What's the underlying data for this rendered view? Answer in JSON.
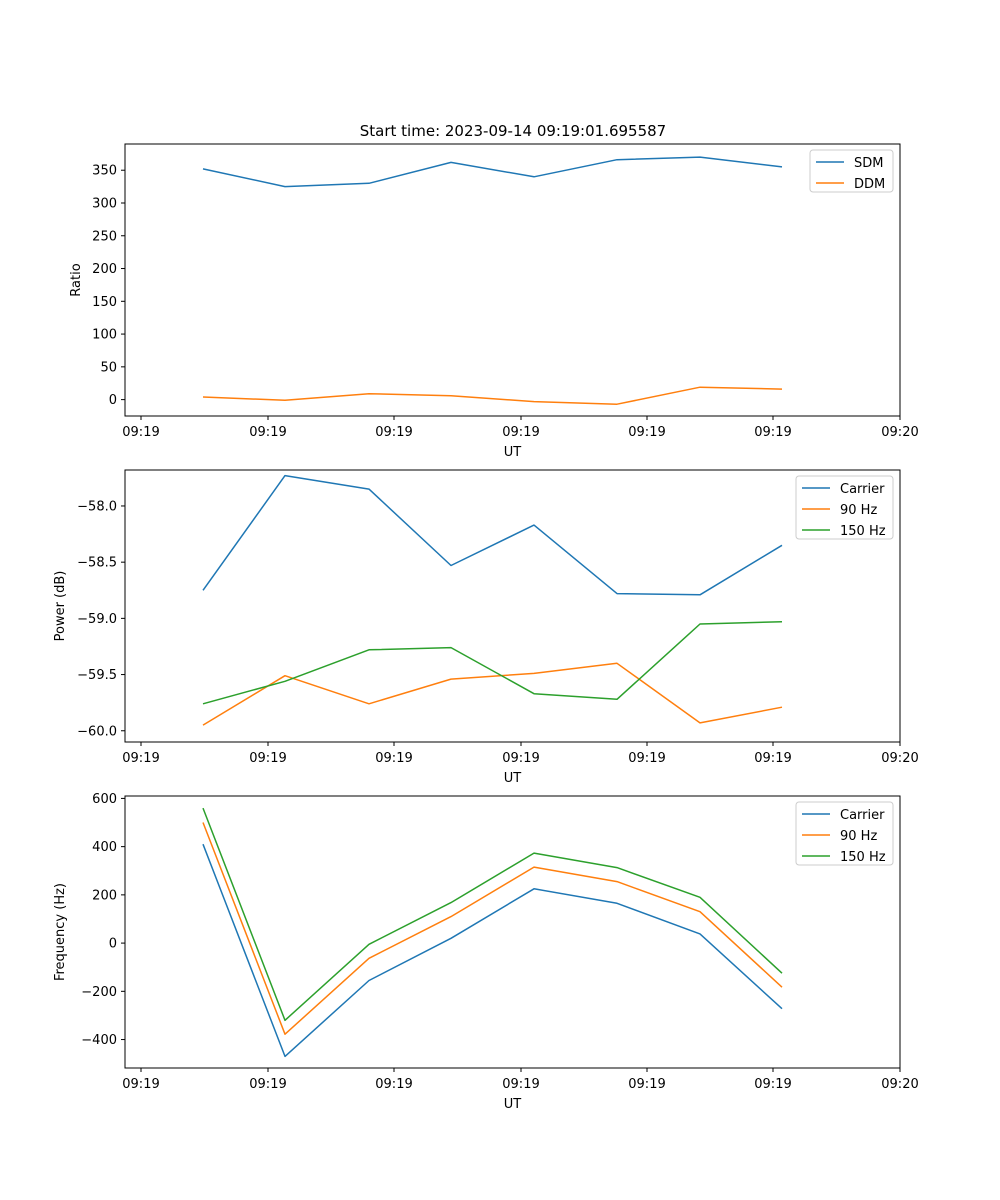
{
  "figure_title": "Start time: 2023-09-14 09:19:01.695587",
  "colors": {
    "c0": "#1f77b4",
    "c1": "#ff7f0e",
    "c2": "#2ca02c"
  },
  "chart_data": [
    {
      "type": "line",
      "xlabel": "UT",
      "ylabel": "Ratio",
      "x_tick_labels": [
        "09:19",
        "09:19",
        "09:19",
        "09:19",
        "09:19",
        "09:19",
        "09:20"
      ],
      "y_ticks": [
        0,
        50,
        100,
        150,
        200,
        250,
        300,
        350
      ],
      "y_tick_labels": [
        "0",
        "50",
        "100",
        "150",
        "200",
        "250",
        "300",
        "350"
      ],
      "ylim": [
        -25,
        390
      ],
      "legend_position": "top-right",
      "series": [
        {
          "name": "SDM",
          "values": [
            352,
            325,
            330,
            362,
            340,
            366,
            370,
            355
          ]
        },
        {
          "name": "DDM",
          "values": [
            4,
            -1,
            9,
            6,
            -3,
            -7,
            19,
            16
          ]
        }
      ]
    },
    {
      "type": "line",
      "xlabel": "UT",
      "ylabel": "Power (dB)",
      "x_tick_labels": [
        "09:19",
        "09:19",
        "09:19",
        "09:19",
        "09:19",
        "09:19",
        "09:20"
      ],
      "y_ticks": [
        -60.0,
        -59.5,
        -59.0,
        -58.5,
        -58.0
      ],
      "y_tick_labels": [
        "−60.0",
        "−59.5",
        "−59.0",
        "−58.5",
        "−58.0"
      ],
      "ylim": [
        -60.1,
        -57.68
      ],
      "legend_position": "top-right",
      "series": [
        {
          "name": "Carrier",
          "values": [
            -58.75,
            -57.73,
            -57.85,
            -58.53,
            -58.17,
            -58.78,
            -58.79,
            -58.35
          ]
        },
        {
          "name": "90 Hz",
          "values": [
            -59.95,
            -59.51,
            -59.76,
            -59.54,
            -59.49,
            -59.4,
            -59.93,
            -59.79
          ]
        },
        {
          "name": "150 Hz",
          "values": [
            -59.76,
            -59.56,
            -59.28,
            -59.26,
            -59.67,
            -59.72,
            -59.05,
            -59.03
          ]
        }
      ]
    },
    {
      "type": "line",
      "xlabel": "UT",
      "ylabel": "Frequency (Hz)",
      "x_tick_labels": [
        "09:19",
        "09:19",
        "09:19",
        "09:19",
        "09:19",
        "09:19",
        "09:20"
      ],
      "y_ticks": [
        -400,
        -200,
        0,
        200,
        400,
        600
      ],
      "y_tick_labels": [
        "−400",
        "−200",
        "0",
        "200",
        "400",
        "600"
      ],
      "ylim": [
        -518,
        610
      ],
      "legend_position": "top-right",
      "series": [
        {
          "name": "Carrier",
          "values": [
            410,
            -470,
            -155,
            20,
            225,
            165,
            38,
            -272
          ]
        },
        {
          "name": "90 Hz",
          "values": [
            500,
            -378,
            -63,
            110,
            315,
            255,
            130,
            -183
          ]
        },
        {
          "name": "150 Hz",
          "values": [
            560,
            -320,
            -5,
            168,
            373,
            313,
            190,
            -125
          ]
        }
      ]
    }
  ]
}
